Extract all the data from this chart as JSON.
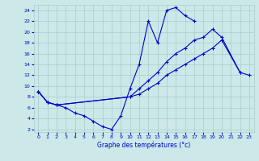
{
  "xlabel": "Graphe des températures (°c)",
  "bg_color": "#cce8e8",
  "grid_color": "#aacccc",
  "line_color": "#0000cc",
  "xlim": [
    -0.5,
    23.5
  ],
  "ylim": [
    1.5,
    25.0
  ],
  "yticks": [
    2,
    4,
    6,
    8,
    10,
    12,
    14,
    16,
    18,
    20,
    22,
    24
  ],
  "xticks": [
    0,
    1,
    2,
    3,
    4,
    5,
    6,
    7,
    8,
    9,
    10,
    11,
    12,
    13,
    14,
    15,
    16,
    17,
    18,
    19,
    20,
    21,
    22,
    23
  ],
  "curve1_x": [
    0,
    1,
    2,
    3,
    4,
    5,
    6,
    7,
    8,
    9,
    10,
    11,
    12,
    13,
    14,
    15,
    16,
    17
  ],
  "curve1_y": [
    9.0,
    7.0,
    6.5,
    6.0,
    5.0,
    4.5,
    3.5,
    2.5,
    2.0,
    4.5,
    9.5,
    14.0,
    22.0,
    18.0,
    24.0,
    24.5,
    23.0,
    22.0
  ],
  "curve2_x": [
    0,
    1,
    2,
    10,
    11,
    12,
    13,
    14,
    15,
    16,
    17,
    18,
    19,
    20,
    22
  ],
  "curve2_y": [
    9.0,
    7.0,
    6.5,
    8.0,
    9.5,
    11.0,
    12.5,
    14.5,
    16.0,
    17.0,
    18.5,
    19.0,
    20.5,
    19.0,
    12.5
  ],
  "curve3_x": [
    0,
    1,
    2,
    10,
    11,
    12,
    13,
    14,
    15,
    16,
    17,
    18,
    19,
    20,
    22,
    23
  ],
  "curve3_y": [
    9.0,
    7.0,
    6.5,
    8.0,
    8.5,
    9.5,
    10.5,
    12.0,
    13.0,
    14.0,
    15.0,
    16.0,
    17.0,
    18.5,
    12.5,
    12.0
  ]
}
